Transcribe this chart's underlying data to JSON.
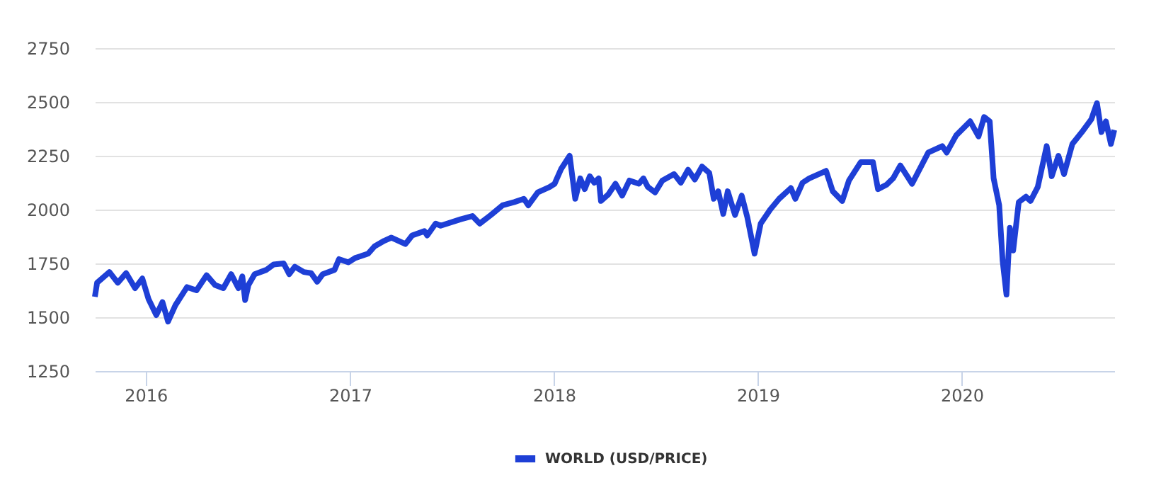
{
  "chart_data": {
    "type": "line",
    "x": [
      "2015-10-02",
      "2015-10-06",
      "2015-10-28",
      "2015-11-12",
      "2015-11-27",
      "2015-12-13",
      "2015-12-26",
      "2016-01-06",
      "2016-01-20",
      "2016-01-31",
      "2016-02-10",
      "2016-02-23",
      "2016-03-15",
      "2016-04-01",
      "2016-04-19",
      "2016-05-04",
      "2016-05-19",
      "2016-06-02",
      "2016-06-15",
      "2016-06-22",
      "2016-06-27",
      "2016-07-03",
      "2016-07-14",
      "2016-08-04",
      "2016-08-17",
      "2016-09-04",
      "2016-09-14",
      "2016-09-24",
      "2016-10-10",
      "2016-10-23",
      "2016-11-03",
      "2016-11-13",
      "2016-12-04",
      "2016-12-12",
      "2016-12-29",
      "2017-01-10",
      "2017-02-02",
      "2017-02-14",
      "2017-03-03",
      "2017-03-16",
      "2017-04-10",
      "2017-04-22",
      "2017-05-14",
      "2017-05-19",
      "2017-06-03",
      "2017-06-12",
      "2017-07-18",
      "2017-08-08",
      "2017-08-21",
      "2017-09-10",
      "2017-10-01",
      "2017-10-22",
      "2017-11-08",
      "2017-11-16",
      "2017-12-03",
      "2017-12-24",
      "2018-01-02",
      "2018-01-14",
      "2018-01-29",
      "2018-02-08",
      "2018-02-17",
      "2018-02-25",
      "2018-03-06",
      "2018-03-14",
      "2018-03-22",
      "2018-03-26",
      "2018-04-08",
      "2018-04-21",
      "2018-05-03",
      "2018-05-16",
      "2018-06-02",
      "2018-06-10",
      "2018-06-18",
      "2018-07-01",
      "2018-07-14",
      "2018-08-04",
      "2018-08-16",
      "2018-08-29",
      "2018-09-10",
      "2018-09-23",
      "2018-10-06",
      "2018-10-14",
      "2018-10-22",
      "2018-10-31",
      "2018-11-08",
      "2018-11-21",
      "2018-12-03",
      "2018-12-13",
      "2018-12-26",
      "2019-01-06",
      "2019-01-23",
      "2019-02-08",
      "2019-03-01",
      "2019-03-09",
      "2019-03-22",
      "2019-04-03",
      "2019-05-03",
      "2019-05-15",
      "2019-06-01",
      "2019-06-13",
      "2019-07-04",
      "2019-07-26",
      "2019-08-04",
      "2019-08-19",
      "2019-08-31",
      "2019-09-13",
      "2019-10-04",
      "2019-11-02",
      "2019-11-27",
      "2019-12-05",
      "2019-12-22",
      "2020-01-16",
      "2020-01-31",
      "2020-02-10",
      "2020-02-20",
      "2020-02-27",
      "2020-03-08",
      "2020-03-14",
      "2020-03-21",
      "2020-03-27",
      "2020-04-02",
      "2020-04-12",
      "2020-04-25",
      "2020-05-03",
      "2020-05-16",
      "2020-06-01",
      "2020-06-10",
      "2020-06-22",
      "2020-07-02",
      "2020-07-17",
      "2020-08-03",
      "2020-08-20",
      "2020-08-30",
      "2020-09-07",
      "2020-09-15",
      "2020-09-24",
      "2020-09-30"
    ],
    "series": [
      {
        "name": "WORLD (USD/PRICE)",
        "color": "#1e3fd6",
        "values": [
          1595,
          1660,
          1710,
          1660,
          1705,
          1635,
          1680,
          1585,
          1510,
          1570,
          1480,
          1555,
          1640,
          1625,
          1695,
          1650,
          1635,
          1700,
          1635,
          1690,
          1580,
          1650,
          1700,
          1720,
          1745,
          1750,
          1700,
          1735,
          1710,
          1705,
          1665,
          1700,
          1720,
          1770,
          1755,
          1775,
          1795,
          1830,
          1855,
          1870,
          1840,
          1880,
          1900,
          1880,
          1935,
          1925,
          1955,
          1970,
          1935,
          1975,
          2020,
          2035,
          2050,
          2020,
          2080,
          2105,
          2120,
          2190,
          2250,
          2050,
          2145,
          2095,
          2155,
          2125,
          2145,
          2040,
          2070,
          2120,
          2065,
          2135,
          2120,
          2145,
          2105,
          2080,
          2135,
          2165,
          2125,
          2185,
          2140,
          2200,
          2170,
          2050,
          2085,
          1980,
          2085,
          1975,
          2065,
          1965,
          1795,
          1935,
          2000,
          2050,
          2100,
          2050,
          2125,
          2145,
          2180,
          2085,
          2040,
          2135,
          2220,
          2220,
          2095,
          2115,
          2145,
          2205,
          2120,
          2265,
          2295,
          2265,
          2345,
          2410,
          2340,
          2430,
          2410,
          2145,
          2020,
          1765,
          1605,
          1915,
          1810,
          2035,
          2060,
          2040,
          2105,
          2295,
          2155,
          2250,
          2165,
          2305,
          2360,
          2420,
          2495,
          2360,
          2410,
          2305,
          2370
        ]
      }
    ],
    "xlim": [
      "2015-10-02",
      "2020-09-30"
    ],
    "xticks": [
      "2016",
      "2017",
      "2018",
      "2019",
      "2020"
    ],
    "ylim": [
      1250,
      2750
    ],
    "yticks": [
      1250,
      1500,
      1750,
      2000,
      2250,
      2500,
      2750
    ],
    "grid": "y",
    "legend": "bottom"
  }
}
